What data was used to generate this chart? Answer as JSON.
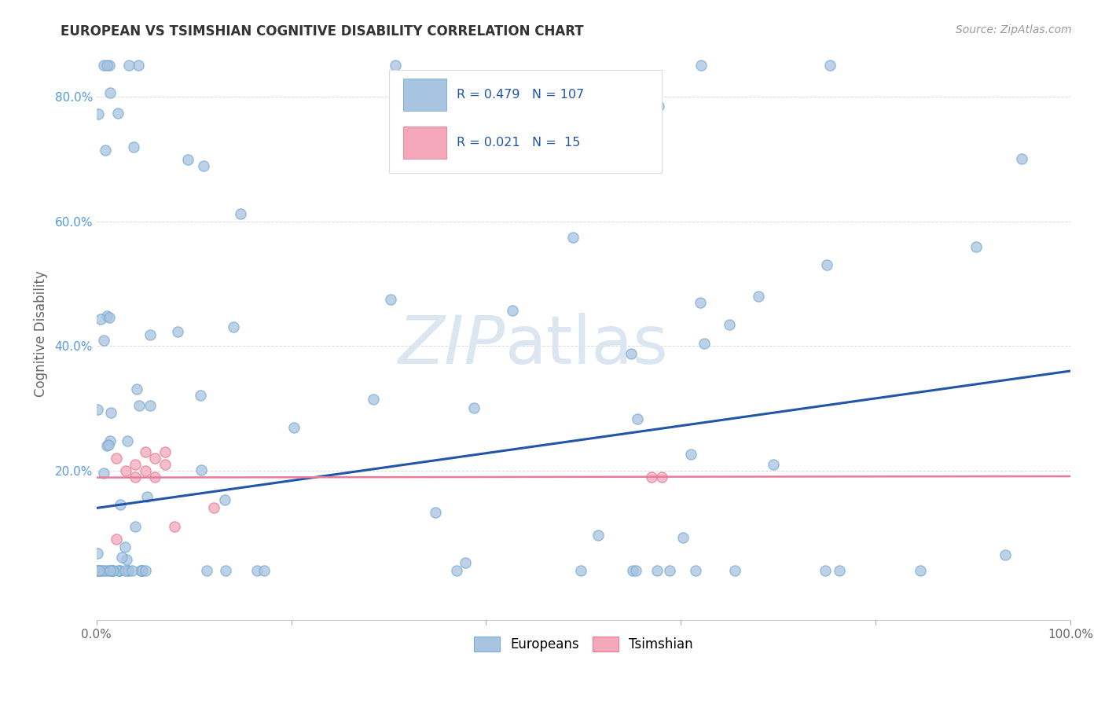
{
  "title": "EUROPEAN VS TSIMSHIAN COGNITIVE DISABILITY CORRELATION CHART",
  "source_text": "Source: ZipAtlas.com",
  "ylabel": "Cognitive Disability",
  "xlim": [
    0.0,
    1.0
  ],
  "ylim": [
    -0.04,
    0.88
  ],
  "xticks": [
    0.0,
    0.2,
    0.4,
    0.6,
    0.8,
    1.0
  ],
  "xtick_labels": [
    "0.0%",
    "",
    "",
    "",
    "",
    "100.0%"
  ],
  "yticks": [
    0.2,
    0.4,
    0.6,
    0.8
  ],
  "ytick_labels": [
    "20.0%",
    "40.0%",
    "60.0%",
    "80.0%"
  ],
  "european_R": 0.479,
  "european_N": 107,
  "tsimshian_R": 0.021,
  "tsimshian_N": 15,
  "european_scatter_color": "#a8c4e0",
  "tsimshian_scatter_color": "#f4a7b9",
  "european_line_color": "#2255aa",
  "tsimshian_line_color": "#e87a9a",
  "title_color": "#333333",
  "grid_color": "#cccccc",
  "watermark_color": "#dce6f0",
  "eur_line_start": 0.14,
  "eur_line_end": 0.36,
  "tsi_line_y": 0.19,
  "legend_eur_color": "#a8c4e0",
  "legend_tsi_color": "#f4a7b9",
  "legend_text_color": "#2255aa"
}
